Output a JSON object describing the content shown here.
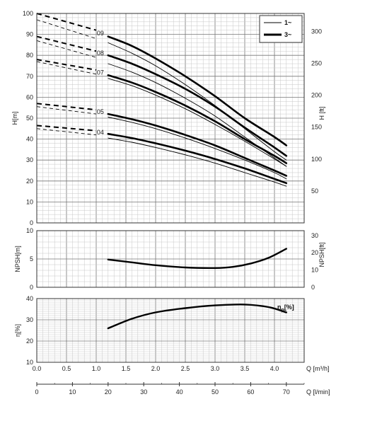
{
  "chart_data": [
    {
      "type": "line",
      "xlabel": "Q [m³/h]",
      "ylabel": "H[m]",
      "ylabel_right": "H [ft]",
      "xlim": [
        0,
        4.5
      ],
      "ylim": [
        0,
        100
      ],
      "ylim_right": [
        0,
        328.1
      ],
      "x_ticks": [
        "0.0",
        "0.5",
        "1.0",
        "1.5",
        "2.0",
        "2.5",
        "3.0",
        "3.5",
        "4.0",
        "4.5"
      ],
      "y_ticks": [
        "0",
        "10",
        "20",
        "30",
        "40",
        "50",
        "60",
        "70",
        "80",
        "90",
        "100"
      ],
      "y_ticks_right": [
        "50",
        "100",
        "150",
        "200",
        "250",
        "300"
      ],
      "grid": true,
      "legend": {
        "position": "top-right",
        "entries": [
          {
            "label": "1~",
            "style": "thin"
          },
          {
            "label": "3~",
            "style": "thick"
          }
        ]
      },
      "series": [
        {
          "name": "09",
          "phase": "3~",
          "x": [
            1.2,
            1.6,
            2.0,
            2.5,
            3.0,
            3.5,
            4.0,
            4.2
          ],
          "y": [
            89,
            84.5,
            78.5,
            70,
            60.5,
            50,
            41,
            37
          ]
        },
        {
          "name": "09",
          "phase": "1~",
          "x": [
            1.2,
            1.6,
            2.0,
            2.5,
            3.0,
            3.5,
            4.0,
            4.2
          ],
          "y": [
            86,
            81,
            75,
            66,
            56,
            45,
            34,
            30
          ]
        },
        {
          "name": "08",
          "phase": "3~",
          "x": [
            1.2,
            1.6,
            2.0,
            2.5,
            3.0,
            3.5,
            4.0,
            4.2
          ],
          "y": [
            80,
            76,
            71,
            64,
            55.5,
            45.5,
            36,
            32
          ]
        },
        {
          "name": "08",
          "phase": "1~",
          "x": [
            1.2,
            1.6,
            2.0,
            2.5,
            3.0,
            3.5,
            4.0,
            4.2
          ],
          "y": [
            76,
            72,
            67,
            59.5,
            51,
            41,
            31,
            27
          ]
        },
        {
          "name": "07",
          "phase": "3~",
          "x": [
            1.2,
            1.6,
            2.0,
            2.5,
            3.0,
            3.5,
            4.0,
            4.2
          ],
          "y": [
            70.5,
            67,
            62.5,
            56,
            48.5,
            40,
            32,
            28.5
          ]
        },
        {
          "name": "07",
          "phase": "1~",
          "x": [
            1.2,
            1.6,
            2.0,
            2.5,
            3.0,
            3.5,
            4.0,
            4.2
          ],
          "y": [
            69,
            65.5,
            61,
            54.5,
            47,
            39,
            30.5,
            27
          ]
        },
        {
          "name": "05",
          "phase": "3~",
          "x": [
            1.2,
            1.6,
            2.0,
            2.5,
            3.0,
            3.5,
            4.0,
            4.2
          ],
          "y": [
            52,
            49.5,
            46.5,
            42,
            37,
            31,
            25,
            22.5
          ]
        },
        {
          "name": "05",
          "phase": "1~",
          "x": [
            1.2,
            1.6,
            2.0,
            2.5,
            3.0,
            3.5,
            4.0,
            4.2
          ],
          "y": [
            50.5,
            48,
            45,
            40.5,
            35.5,
            30,
            24,
            21
          ]
        },
        {
          "name": "04",
          "phase": "3~",
          "x": [
            1.2,
            1.6,
            2.0,
            2.5,
            3.0,
            3.5,
            4.0,
            4.2
          ],
          "y": [
            42.5,
            40.5,
            38,
            34.5,
            30.5,
            26,
            21,
            19
          ]
        },
        {
          "name": "04",
          "phase": "1~",
          "x": [
            1.2,
            1.6,
            2.0,
            2.5,
            3.0,
            3.5,
            4.0,
            4.2
          ],
          "y": [
            40.5,
            38.5,
            36,
            32.5,
            28.5,
            24,
            19.5,
            17.5
          ]
        }
      ],
      "dashed_extensions": [
        {
          "name": "09",
          "x": [
            0,
            1.0
          ],
          "y_upper": [
            100,
            92
          ],
          "y_lower": [
            97,
            88
          ]
        },
        {
          "name": "08",
          "x": [
            0,
            1.0
          ],
          "y_upper": [
            89,
            82
          ],
          "y_lower": [
            87,
            79
          ]
        },
        {
          "name": "07",
          "x": [
            0,
            1.0
          ],
          "y_upper": [
            78,
            73
          ],
          "y_lower": [
            77,
            71
          ]
        },
        {
          "name": "05",
          "x": [
            0,
            1.0
          ],
          "y_upper": [
            57,
            54
          ],
          "y_lower": [
            55.5,
            52
          ]
        },
        {
          "name": "04",
          "x": [
            0,
            1.0
          ],
          "y_upper": [
            46.5,
            44
          ],
          "y_lower": [
            45,
            42
          ]
        }
      ]
    },
    {
      "type": "line",
      "xlabel": "",
      "ylabel": "NPSH[m]",
      "ylabel_right": "NPSH[ft]",
      "xlim": [
        0,
        4.5
      ],
      "ylim": [
        0,
        10
      ],
      "ylim_right": [
        0,
        32.8
      ],
      "y_ticks": [
        "0",
        "5",
        "10"
      ],
      "y_ticks_right": [
        "0",
        "10",
        "20",
        "30"
      ],
      "grid": true,
      "series": [
        {
          "name": "",
          "x": [
            1.2,
            1.6,
            2.0,
            2.5,
            3.0,
            3.3,
            3.6,
            3.9,
            4.2
          ],
          "y": [
            4.9,
            4.4,
            3.9,
            3.5,
            3.4,
            3.6,
            4.2,
            5.2,
            6.8
          ]
        }
      ]
    },
    {
      "type": "line",
      "xlabel": "Q [m³/h]",
      "ylabel": "η[%]",
      "series_label": "η",
      "series_label_sub": "p",
      "series_label_unit": "[%]",
      "xlim": [
        0,
        4.5
      ],
      "ylim": [
        10,
        40
      ],
      "x_ticks": [
        "0.0",
        "0.5",
        "1.0",
        "1.5",
        "2.0",
        "2.5",
        "3.0",
        "3.5",
        "4.0",
        "4.5"
      ],
      "y_ticks": [
        "10",
        "20",
        "30",
        "40"
      ],
      "grid": true,
      "second_axis": {
        "label": "Q [l/min]",
        "lim": [
          0,
          75
        ],
        "ticks": [
          "0",
          "10",
          "20",
          "30",
          "40",
          "50",
          "60",
          "70"
        ]
      },
      "series": [
        {
          "name": "",
          "x": [
            1.2,
            1.6,
            2.0,
            2.5,
            3.0,
            3.5,
            3.9,
            4.2
          ],
          "y": [
            26,
            30.5,
            33.5,
            35.5,
            36.8,
            37.2,
            36,
            33.5
          ]
        }
      ]
    }
  ]
}
